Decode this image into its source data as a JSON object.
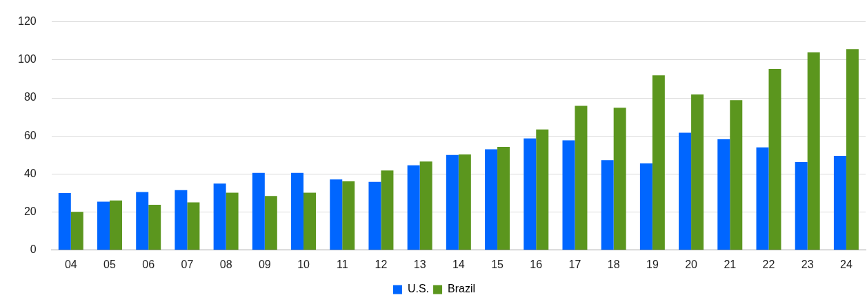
{
  "chart_data": {
    "type": "bar",
    "categories": [
      "04",
      "05",
      "06",
      "07",
      "08",
      "09",
      "10",
      "11",
      "12",
      "13",
      "14",
      "15",
      "16",
      "17",
      "18",
      "19",
      "20",
      "21",
      "22",
      "23",
      "24"
    ],
    "series": [
      {
        "name": "U.S.",
        "color": "#0066ff",
        "values": [
          30,
          25.5,
          30.5,
          31.5,
          35,
          40.6,
          40.6,
          37.2,
          35.9,
          44.6,
          50,
          53,
          58.7,
          57.7,
          47.3,
          45.6,
          61.7,
          58.3,
          54,
          46.3,
          49.6
        ]
      },
      {
        "name": "Brazil",
        "color": "#5b961e",
        "values": [
          20.1,
          26.1,
          23.8,
          25.1,
          30.2,
          28.5,
          30.2,
          36.2,
          41.9,
          46.6,
          50.3,
          54.3,
          63.4,
          75.8,
          74.8,
          91.9,
          81.8,
          78.8,
          95.2,
          103.9,
          105.6
        ]
      }
    ],
    "ylim": [
      0,
      120
    ],
    "yticks": [
      0,
      20,
      40,
      60,
      80,
      100,
      120
    ],
    "grid": "y",
    "legend": "bottom"
  }
}
